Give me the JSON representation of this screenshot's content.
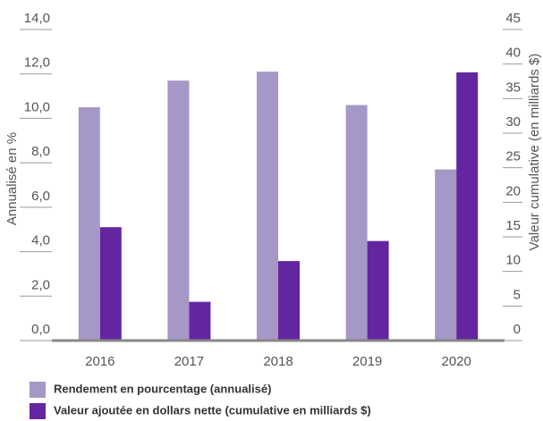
{
  "chart_data": {
    "type": "bar",
    "categories": [
      "2016",
      "2017",
      "2018",
      "2019",
      "2020"
    ],
    "series": [
      {
        "name": "Rendement en pourcentage (annualisé)",
        "color": "#a597c6",
        "values": [
          10.5,
          11.7,
          12.1,
          10.6,
          7.7
        ]
      },
      {
        "name": "Valeur ajoutée en dollars nette (cumulative en milliards $)",
        "color": "#6426a0",
        "axis": "y2",
        "values": [
          16.4,
          5.6,
          11.5,
          14.4,
          38.8
        ]
      }
    ],
    "ylabel": "Annualisé en %",
    "y2label": "Valeur cumulative (en milliards $)",
    "ylim": [
      0,
      14
    ],
    "yticks": [
      {
        "value": 0,
        "label": "0,0"
      },
      {
        "value": 2,
        "label": "2,0"
      },
      {
        "value": 4,
        "label": "4,0"
      },
      {
        "value": 6,
        "label": "6,0"
      },
      {
        "value": 8,
        "label": "8,0"
      },
      {
        "value": 10,
        "label": "10,0"
      },
      {
        "value": 12,
        "label": "12,0"
      },
      {
        "value": 14,
        "label": "14,0"
      }
    ],
    "y2lim": [
      0,
      45
    ],
    "y2ticks": [
      0,
      5,
      10,
      15,
      20,
      25,
      30,
      35,
      40,
      45
    ]
  }
}
